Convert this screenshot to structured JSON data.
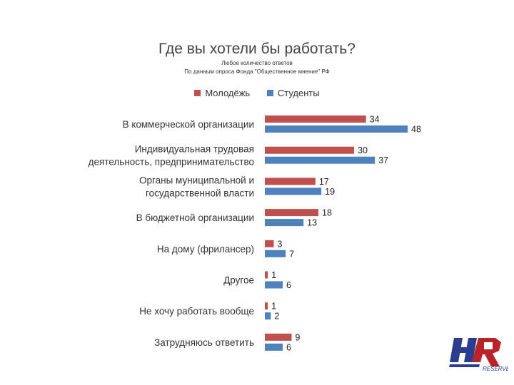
{
  "chart_data": {
    "type": "bar",
    "orientation": "horizontal",
    "title": "Где вы хотели бы работать?",
    "subtitle": [
      "Любое количество ответов",
      "По данным опроса Фонда \"Общественное мнение\" РФ"
    ],
    "categories": [
      [
        "В коммерческой организации"
      ],
      [
        "Индивидуальная трудовая",
        "деятельность, предпринимательство"
      ],
      [
        "Органы муниципальной и",
        "государственной власти"
      ],
      [
        "В бюджетной организации"
      ],
      [
        "На дому (фрилансер)"
      ],
      [
        "Другое"
      ],
      [
        "Не хочу работать вообще"
      ],
      [
        "Затрудняюсь ответить"
      ]
    ],
    "series": [
      {
        "name": "Молодёжь",
        "color": "#c0504d",
        "values": [
          34,
          30,
          17,
          18,
          3,
          1,
          1,
          9
        ]
      },
      {
        "name": "Студенты",
        "color": "#4f81bd",
        "values": [
          48,
          37,
          19,
          13,
          7,
          6,
          2,
          6
        ]
      }
    ],
    "xlim": [
      0,
      48
    ],
    "legend_position": "top-center",
    "grid": false
  },
  "logo": {
    "main": "HR",
    "sub": "RESERVE"
  }
}
